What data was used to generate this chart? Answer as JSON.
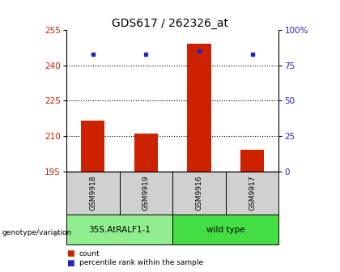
{
  "title": "GDS617 / 262326_at",
  "samples": [
    "GSM9918",
    "GSM9919",
    "GSM9916",
    "GSM9917"
  ],
  "counts": [
    216.5,
    211.0,
    249.0,
    204.0
  ],
  "percentiles": [
    83,
    83,
    85,
    83
  ],
  "ymin": 195,
  "ymax": 255,
  "yticks_left": [
    195,
    210,
    225,
    240,
    255
  ],
  "yticks_right": [
    0,
    25,
    50,
    75,
    100
  ],
  "dotted_lines": [
    210,
    225,
    240
  ],
  "groups": [
    {
      "label": "35S.AtRALF1-1",
      "indices": [
        0,
        1
      ],
      "color": "#90ee90"
    },
    {
      "label": "wild type",
      "indices": [
        2,
        3
      ],
      "color": "#44dd44"
    }
  ],
  "bar_color": "#cc2200",
  "dot_color": "#2222cc",
  "bar_bottom": 195,
  "title_fontsize": 10,
  "axis_label_color_left": "#cc2200",
  "axis_label_color_right": "#2222cc",
  "legend_count_label": "count",
  "legend_pct_label": "percentile rank within the sample",
  "group_label": "genotype/variation",
  "bg_color": "#ffffff"
}
